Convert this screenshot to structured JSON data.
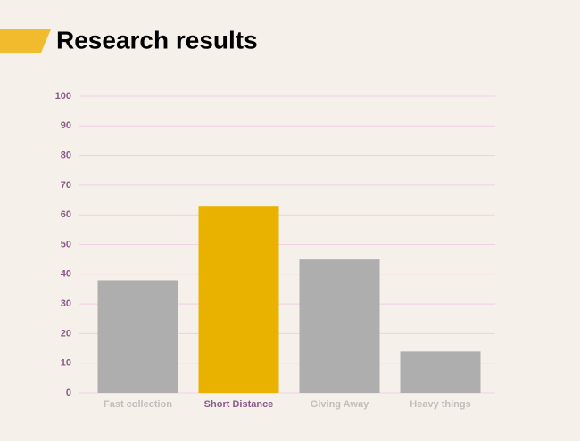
{
  "chart_data": {
    "type": "bar",
    "title": "Research results",
    "categories": [
      "Fast collection",
      "Short Distance",
      "Giving Away",
      "Heavy things"
    ],
    "values": [
      38,
      63,
      45,
      14
    ],
    "colors": [
      "#aeaeae",
      "#e9b200",
      "#aeaeae",
      "#aeaeae"
    ],
    "label_colors": [
      "#c4bcbc",
      "#8a5a8a",
      "#c4bcbc",
      "#c4bcbc"
    ],
    "ylim": [
      0,
      100
    ],
    "yticks": [
      0,
      10,
      20,
      30,
      40,
      50,
      60,
      70,
      80,
      90,
      100
    ],
    "grid": true
  }
}
